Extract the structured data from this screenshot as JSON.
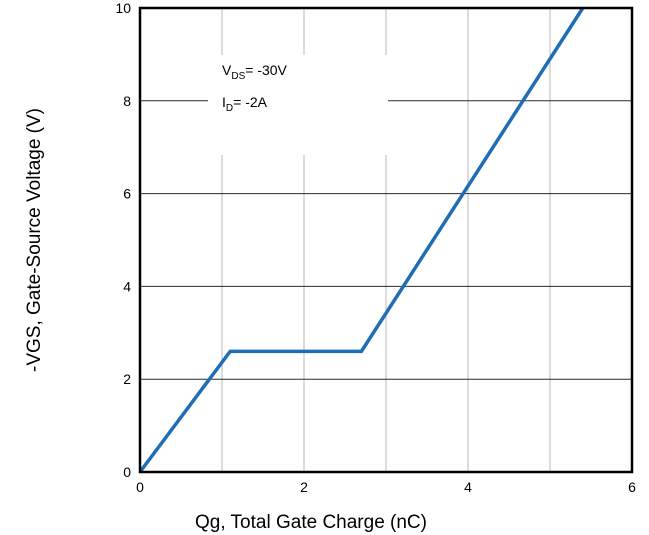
{
  "chart_data": {
    "type": "line",
    "xlabel": "Qg, Total Gate Charge (nC)",
    "ylabel": "-VGS, Gate-Source Voltage (V)",
    "xlim": [
      0,
      6
    ],
    "ylim": [
      0,
      10
    ],
    "xticks": [
      "0",
      "2",
      "4",
      "6"
    ],
    "yticks": [
      "0",
      "2",
      "4",
      "6",
      "8",
      "10"
    ],
    "grid": true,
    "series": [
      {
        "color": "#1f6eb5",
        "x": [
          0,
          1.1,
          2.7,
          5.4
        ],
        "y": [
          0,
          2.6,
          2.6,
          10
        ]
      }
    ],
    "annotations": {
      "vds": {
        "main": "V",
        "sub": "DS",
        "rest": "= -30V"
      },
      "id": {
        "main": "I",
        "sub": "D",
        "rest": "= -2A"
      }
    }
  }
}
